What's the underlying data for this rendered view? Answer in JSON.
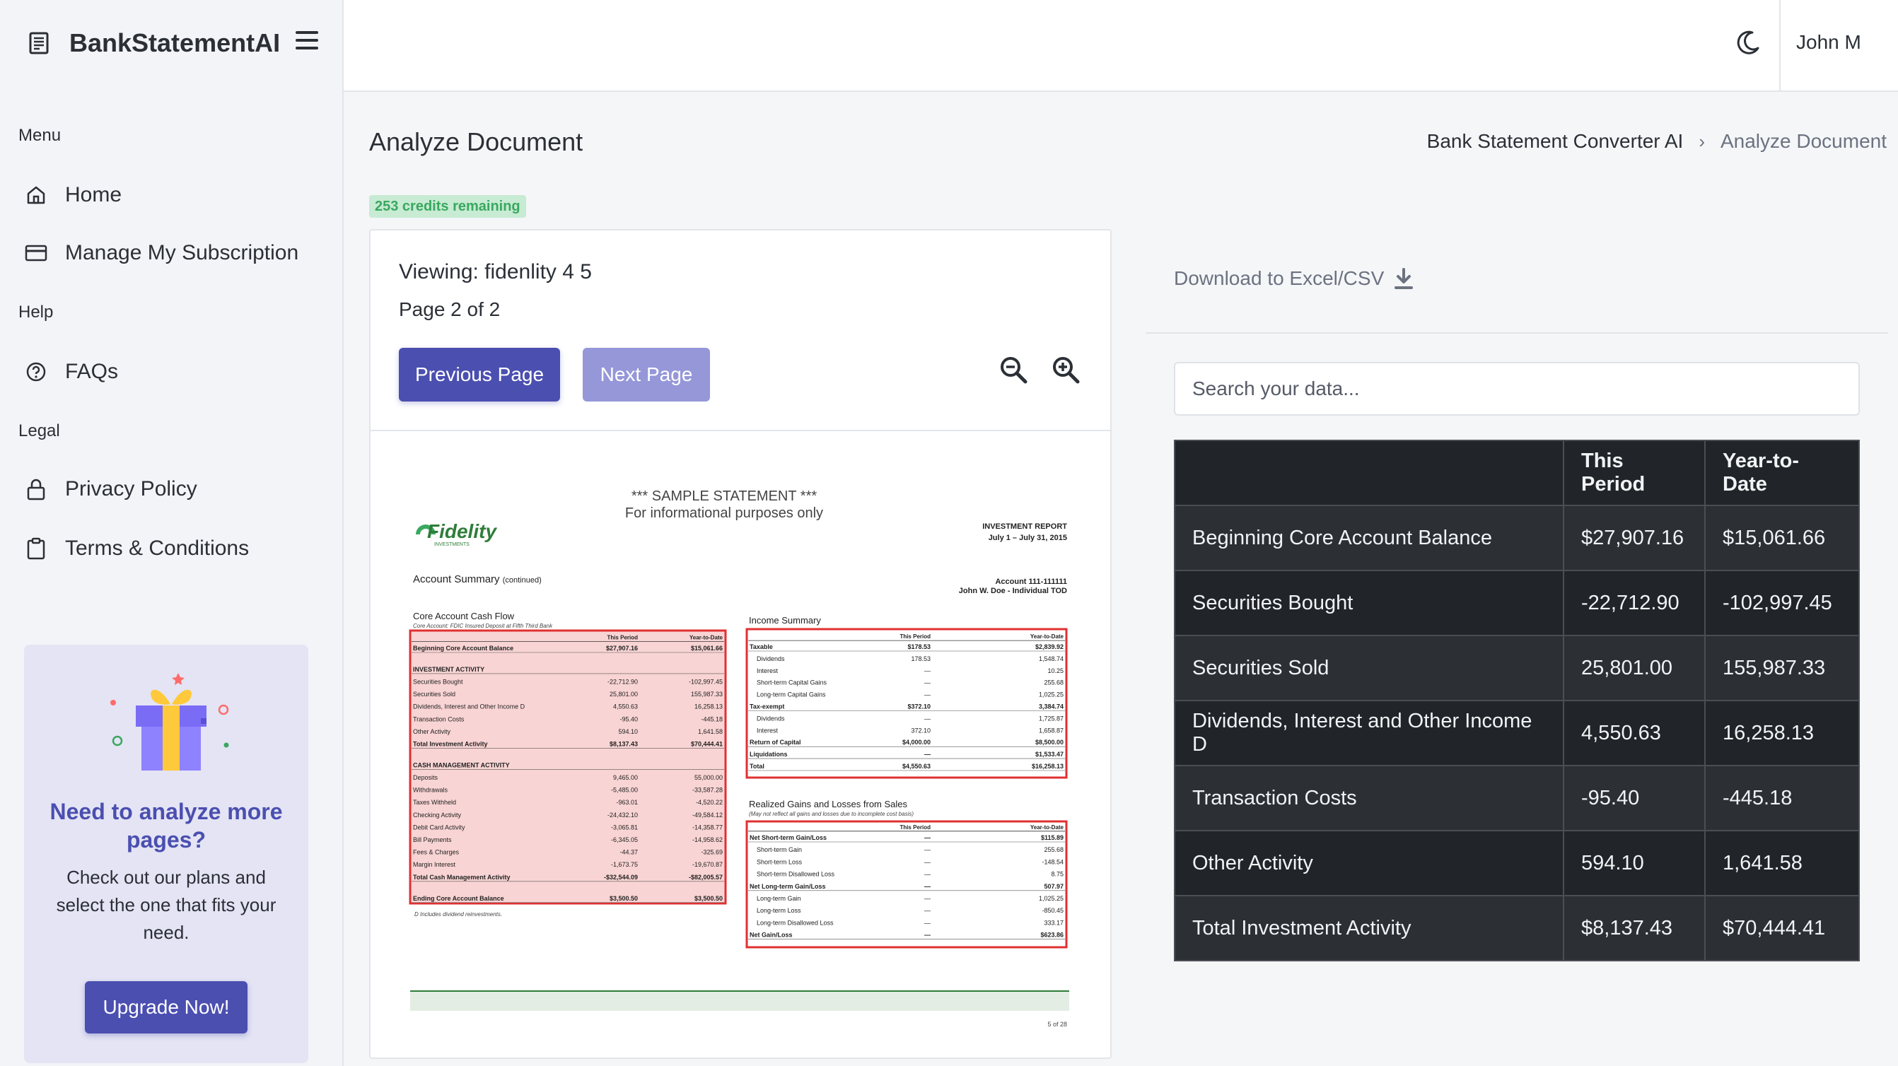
{
  "brand": {
    "name": "BankStatementAI"
  },
  "sidebar": {
    "sections": [
      {
        "title": "Menu",
        "items": [
          {
            "label": "Home",
            "icon": "home-icon"
          },
          {
            "label": "Manage My Subscription",
            "icon": "card-icon"
          }
        ]
      },
      {
        "title": "Help",
        "items": [
          {
            "label": "FAQs",
            "icon": "question-icon"
          }
        ]
      },
      {
        "title": "Legal",
        "items": [
          {
            "label": "Privacy Policy",
            "icon": "lock-icon"
          },
          {
            "label": "Terms & Conditions",
            "icon": "clipboard-icon"
          }
        ]
      }
    ],
    "promo": {
      "title": "Need to analyze more pages?",
      "text": "Check out our plans and select the one that fits your need.",
      "button": "Upgrade Now!"
    }
  },
  "header": {
    "user": "John M",
    "theme_icon": "moon-icon"
  },
  "page": {
    "title": "Analyze Document",
    "breadcrumb": {
      "parent": "Bank Statement Converter AI",
      "current": "Analyze Document"
    },
    "credits": "253 credits remaining"
  },
  "viewer": {
    "viewing": "Viewing: fidenlity 4 5",
    "page_info": "Page 2 of 2",
    "prev_label": "Previous Page",
    "next_label": "Next Page",
    "doc": {
      "sample_title": "*** SAMPLE STATEMENT ***",
      "sample_sub": "For informational purposes only",
      "logo": "Fidelity",
      "logo_sub": "INVESTMENTS",
      "report_title": "INVESTMENT REPORT",
      "report_dates": "July 1 – July 31, 2015",
      "account_summary": "Account Summary",
      "continued": "(continued)",
      "account_no": "Account 111-111111",
      "account_owner": "John W. Doe - Individual TOD",
      "core_title": "Core Account Cash Flow",
      "core_sub": "Core Account: FDIC Insured Deposit at Fifth Third Bank",
      "col_period": "This Period",
      "col_ytd": "Year-to-Date",
      "core_rows": [
        {
          "label": "Beginning Core Account Balance",
          "p": "$27,907.16",
          "y": "$15,061.66",
          "bold": true
        },
        {
          "label": "INVESTMENT ACTIVITY",
          "p": "",
          "y": "",
          "bold": true
        },
        {
          "label": "Securities Bought",
          "p": "-22,712.90",
          "y": "-102,997.45"
        },
        {
          "label": "Securities Sold",
          "p": "25,801.00",
          "y": "155,987.33"
        },
        {
          "label": "Dividends, Interest and Other Income D",
          "p": "4,550.63",
          "y": "16,258.13"
        },
        {
          "label": "Transaction Costs",
          "p": "-95.40",
          "y": "-445.18"
        },
        {
          "label": "Other Activity",
          "p": "594.10",
          "y": "1,641.58"
        },
        {
          "label": "Total Investment Activity",
          "p": "$8,137.43",
          "y": "$70,444.41",
          "bold": true
        },
        {
          "label": "CASH MANAGEMENT ACTIVITY",
          "p": "",
          "y": "",
          "bold": true
        },
        {
          "label": "Deposits",
          "p": "9,465.00",
          "y": "55,000.00"
        },
        {
          "label": "Withdrawals",
          "p": "-5,485.00",
          "y": "-33,587.28"
        },
        {
          "label": "Taxes Withheld",
          "p": "-963.01",
          "y": "-4,520.22"
        },
        {
          "label": "Checking Activity",
          "p": "-24,432.10",
          "y": "-49,584.12"
        },
        {
          "label": "Debit Card Activity",
          "p": "-3,065.81",
          "y": "-14,358.77"
        },
        {
          "label": "Bill Payments",
          "p": "-6,345.05",
          "y": "-14,958.62"
        },
        {
          "label": "Fees & Charges",
          "p": "-44.37",
          "y": "-325.69"
        },
        {
          "label": "Margin Interest",
          "p": "-1,673.75",
          "y": "-19,670.87"
        },
        {
          "label": "Total Cash Management Activity",
          "p": "-$32,544.09",
          "y": "-$82,005.57",
          "bold": true
        },
        {
          "label": "Ending Core Account Balance",
          "p": "$3,500.50",
          "y": "$3,500.50",
          "bold": true
        }
      ],
      "core_note": "D  Includes dividend reinvestments.",
      "income_title": "Income Summary",
      "income_rows": [
        {
          "label": "Taxable",
          "p": "$178.53",
          "y": "$2,839.92",
          "bold": true
        },
        {
          "label": "Dividends",
          "p": "178.53",
          "y": "1,548.74",
          "indent": true
        },
        {
          "label": "Interest",
          "p": "—",
          "y": "10.25",
          "indent": true
        },
        {
          "label": "Short-term Capital Gains",
          "p": "—",
          "y": "255.68",
          "indent": true
        },
        {
          "label": "Long-term Capital Gains",
          "p": "—",
          "y": "1,025.25",
          "indent": true
        },
        {
          "label": "Tax-exempt",
          "p": "$372.10",
          "y": "3,384.74",
          "bold": true
        },
        {
          "label": "Dividends",
          "p": "—",
          "y": "1,725.87",
          "indent": true
        },
        {
          "label": "Interest",
          "p": "372.10",
          "y": "1,658.87",
          "indent": true
        },
        {
          "label": "Return of Capital",
          "p": "$4,000.00",
          "y": "$8,500.00",
          "bold": true
        },
        {
          "label": "Liquidations",
          "p": "—",
          "y": "$1,533.47",
          "bold": true
        },
        {
          "label": "Total",
          "p": "$4,550.63",
          "y": "$16,258.13",
          "bold": true
        }
      ],
      "gains_title": "Realized Gains and Losses from Sales",
      "gains_sub": "(May not reflect all gains and losses due to incomplete cost basis)",
      "gains_rows": [
        {
          "label": "Net Short-term Gain/Loss",
          "p": "—",
          "y": "$115.89",
          "bold": true
        },
        {
          "label": "Short-term Gain",
          "p": "—",
          "y": "255.68",
          "indent": true
        },
        {
          "label": "Short-term Loss",
          "p": "—",
          "y": "-148.54",
          "indent": true
        },
        {
          "label": "Short-term Disallowed Loss",
          "p": "—",
          "y": "8.75",
          "indent": true
        },
        {
          "label": "Net Long-term Gain/Loss",
          "p": "—",
          "y": "507.97",
          "bold": true
        },
        {
          "label": "Long-term Gain",
          "p": "—",
          "y": "1,025.25",
          "indent": true
        },
        {
          "label": "Long-term Loss",
          "p": "—",
          "y": "-850.45",
          "indent": true
        },
        {
          "label": "Long-term Disallowed Loss",
          "p": "—",
          "y": "333.17",
          "indent": true
        },
        {
          "label": "Net Gain/Loss",
          "p": "—",
          "y": "$623.86",
          "bold": true
        }
      ],
      "page_footer": "5 of 28"
    }
  },
  "results": {
    "download_label": "Download to Excel/CSV",
    "search_placeholder": "Search your data...",
    "columns": [
      "",
      "This Period",
      "Year-to-Date"
    ],
    "rows": [
      [
        "Beginning Core Account Balance",
        "$27,907.16",
        "$15,061.66"
      ],
      [
        "Securities Bought",
        "-22,712.90",
        "-102,997.45"
      ],
      [
        "Securities Sold",
        "25,801.00",
        "155,987.33"
      ],
      [
        "Dividends, Interest and Other Income D",
        "4,550.63",
        "16,258.13"
      ],
      [
        "Transaction Costs",
        "-95.40",
        "-445.18"
      ],
      [
        "Other Activity",
        "594.10",
        "1,641.58"
      ],
      [
        "Total Investment Activity",
        "$8,137.43",
        "$70,444.41"
      ]
    ]
  }
}
